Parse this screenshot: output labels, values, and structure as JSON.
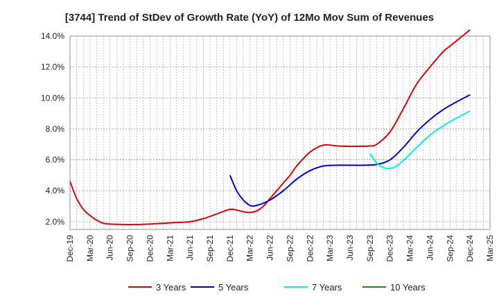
{
  "chart_data": {
    "type": "line",
    "title": "[3744]  Trend of StDev of Growth Rate (YoY) of 12Mo Mov Sum of Revenues",
    "xlabel": "",
    "ylabel": "",
    "ylim": [
      1.5,
      14.0
    ],
    "yticks": [
      2.0,
      4.0,
      6.0,
      8.0,
      10.0,
      12.0,
      14.0
    ],
    "ytick_labels": [
      "2.0%",
      "4.0%",
      "6.0%",
      "8.0%",
      "10.0%",
      "12.0%",
      "14.0%"
    ],
    "x_tick_labels": [
      "Dec-19",
      "Mar-20",
      "Jun-20",
      "Sep-20",
      "Dec-20",
      "Mar-21",
      "Jun-21",
      "Sep-21",
      "Dec-21",
      "Mar-22",
      "Jun-22",
      "Sep-22",
      "Dec-22",
      "Mar-23",
      "Jun-23",
      "Sep-23",
      "Dec-23",
      "Mar-24",
      "Jun-24",
      "Sep-24",
      "Dec-24",
      "Mar-25"
    ],
    "x_range_months": [
      0,
      63
    ],
    "grid": true,
    "legend_position": "bottom",
    "series": [
      {
        "name": "3 Years",
        "color": "#dd0000",
        "x": [
          0,
          1,
          2,
          3,
          4,
          5,
          6,
          8,
          10,
          12,
          14,
          16,
          18,
          20,
          22,
          24,
          25,
          26,
          27,
          28,
          29,
          30,
          31,
          32,
          33,
          34,
          36,
          38,
          40,
          41,
          42,
          43,
          44,
          45,
          46,
          48,
          50,
          52,
          54,
          56,
          57,
          58,
          59,
          60
        ],
        "values": [
          4.6,
          3.5,
          2.8,
          2.4,
          2.1,
          1.9,
          1.85,
          1.82,
          1.82,
          1.85,
          1.9,
          1.95,
          2.0,
          2.2,
          2.5,
          2.8,
          2.75,
          2.65,
          2.6,
          2.7,
          3.0,
          3.5,
          4.0,
          4.5,
          5.0,
          5.6,
          6.5,
          6.95,
          6.9,
          6.88,
          6.87,
          6.87,
          6.88,
          6.9,
          7.0,
          7.8,
          9.3,
          10.9,
          12.0,
          13.0,
          13.35,
          13.7,
          14.05,
          14.4
        ]
      },
      {
        "name": "5 Years",
        "color": "#0000cc",
        "x": [
          24,
          25,
          26,
          27,
          28,
          30,
          32,
          34,
          36,
          38,
          40,
          42,
          44,
          46,
          48,
          50,
          52,
          54,
          56,
          58,
          60
        ],
        "values": [
          5.0,
          4.0,
          3.4,
          3.05,
          3.05,
          3.4,
          4.0,
          4.75,
          5.3,
          5.6,
          5.65,
          5.65,
          5.65,
          5.7,
          6.0,
          6.8,
          7.8,
          8.6,
          9.25,
          9.75,
          10.2
        ]
      },
      {
        "name": "7 Years",
        "color": "#00eeee",
        "x": [
          45,
          46,
          47,
          48,
          49,
          50,
          52,
          54,
          56,
          58,
          60
        ],
        "values": [
          6.4,
          5.8,
          5.5,
          5.45,
          5.6,
          5.95,
          6.8,
          7.6,
          8.2,
          8.7,
          9.15
        ]
      },
      {
        "name": "10 Years",
        "color": "#228822",
        "x": [],
        "values": []
      }
    ]
  }
}
